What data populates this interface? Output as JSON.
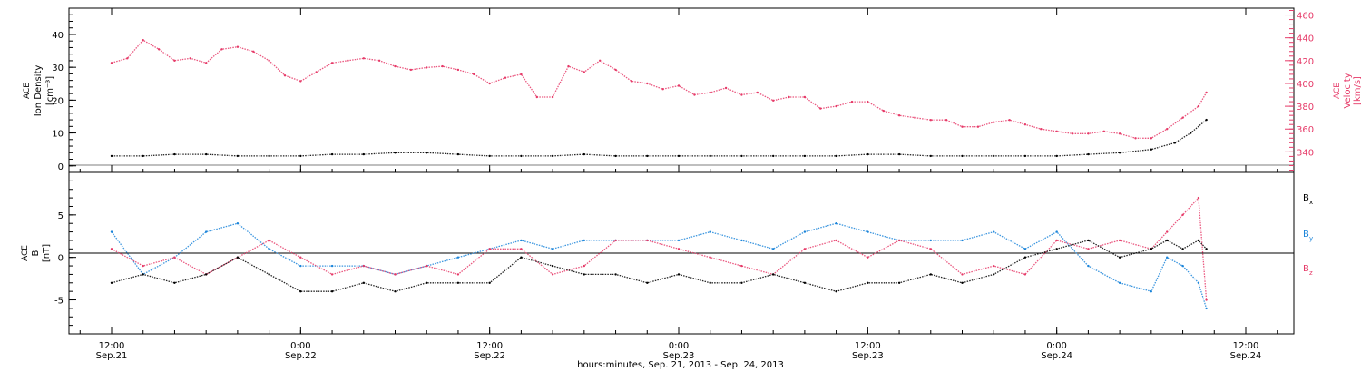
{
  "colors": {
    "primary": "#000000",
    "pink": "#e63a68",
    "blue": "#1a84d9"
  },
  "x_axis": {
    "ticks": [
      {
        "time": "12:00",
        "date": "Sep.21"
      },
      {
        "time": "0:00",
        "date": "Sep.22"
      },
      {
        "time": "12:00",
        "date": "Sep.22"
      },
      {
        "time": "0:00",
        "date": "Sep.23"
      },
      {
        "time": "12:00",
        "date": "Sep.23"
      },
      {
        "time": "0:00",
        "date": "Sep.24"
      },
      {
        "time": "12:00",
        "date": "Sep.24"
      }
    ],
    "label": "hours:minutes, Sep. 21, 2013 - Sep. 24, 2013"
  },
  "chart_data": [
    {
      "type": "scatter",
      "ylabel_left": [
        "ACE",
        "Ion Density",
        "[cm⁻³]"
      ],
      "ylabel_right": [
        "ACE",
        "Velocity",
        "[km/s]"
      ],
      "left_ticks": [
        "40",
        "30",
        "20",
        "10",
        "0"
      ],
      "right_ticks": [
        "460",
        "440",
        "420",
        "400",
        "380",
        "360",
        "340"
      ],
      "ylim_left": [
        -2,
        48
      ],
      "ylim_right": [
        322,
        466
      ],
      "series": [
        {
          "name": "Ion Density",
          "color": "#000000",
          "x": [
            0,
            2,
            4,
            6,
            8,
            10,
            12,
            14,
            16,
            18,
            20,
            22,
            24,
            26,
            28,
            30,
            32,
            34,
            36,
            38,
            40,
            42,
            44,
            46,
            48,
            50,
            52,
            54,
            56,
            58,
            60,
            62,
            64,
            66,
            67.5,
            68.5,
            69.5
          ],
          "y": [
            3,
            3,
            3.5,
            3.5,
            3,
            3,
            3,
            3.5,
            3.5,
            4,
            4,
            3.5,
            3,
            3,
            3,
            3.5,
            3,
            3,
            3,
            3,
            3,
            3,
            3,
            3,
            3.5,
            3.5,
            3,
            3,
            3,
            3,
            3,
            3.5,
            4,
            5,
            7,
            10,
            14
          ]
        },
        {
          "name": "Velocity",
          "color": "#e63a68",
          "x": [
            0,
            1,
            2,
            3,
            4,
            5,
            6,
            7,
            8,
            9,
            10,
            11,
            12,
            13,
            14,
            15,
            16,
            17,
            18,
            19,
            20,
            21,
            22,
            23,
            24,
            25,
            26,
            27,
            28,
            29,
            30,
            31,
            32,
            33,
            34,
            35,
            36,
            37,
            38,
            39,
            40,
            41,
            42,
            43,
            44,
            45,
            46,
            47,
            48,
            49,
            50,
            51,
            52,
            53,
            54,
            55,
            56,
            57,
            58,
            59,
            60,
            61,
            62,
            63,
            64,
            65,
            66,
            67,
            68,
            69,
            69.5
          ],
          "y": [
            418,
            422,
            438,
            430,
            420,
            422,
            418,
            430,
            432,
            428,
            420,
            407,
            402,
            410,
            418,
            420,
            422,
            420,
            415,
            412,
            414,
            415,
            412,
            408,
            400,
            405,
            408,
            388,
            388,
            415,
            410,
            420,
            412,
            402,
            400,
            395,
            398,
            390,
            392,
            396,
            390,
            392,
            385,
            388,
            388,
            378,
            380,
            384,
            384,
            376,
            372,
            370,
            368,
            368,
            362,
            362,
            366,
            368,
            364,
            360,
            358,
            356,
            356,
            358,
            356,
            352,
            352,
            360,
            370,
            380,
            392
          ]
        }
      ]
    },
    {
      "type": "scatter",
      "ylabel_left": [
        "ACE",
        "B",
        "[nT]"
      ],
      "left_ticks": [
        "5",
        "0",
        "-5"
      ],
      "ylim_left": [
        -9,
        10
      ],
      "legend": [
        {
          "label": "B",
          "sub": "x",
          "color": "#000000"
        },
        {
          "label": "B",
          "sub": "y",
          "color": "#1a84d9"
        },
        {
          "label": "B",
          "sub": "z",
          "color": "#e63a68"
        }
      ],
      "series": [
        {
          "name": "Bx",
          "color": "#000000",
          "x": [
            0,
            2,
            4,
            6,
            8,
            10,
            12,
            14,
            16,
            18,
            20,
            22,
            24,
            26,
            28,
            30,
            32,
            34,
            36,
            38,
            40,
            42,
            44,
            46,
            48,
            50,
            52,
            54,
            56,
            58,
            60,
            62,
            64,
            66,
            67,
            68,
            69,
            69.5
          ],
          "y": [
            -3,
            -2,
            -3,
            -2,
            0,
            -2,
            -4,
            -4,
            -3,
            -4,
            -3,
            -3,
            -3,
            0,
            -1,
            -2,
            -2,
            -3,
            -2,
            -3,
            -3,
            -2,
            -3,
            -4,
            -3,
            -3,
            -2,
            -3,
            -2,
            0,
            1,
            2,
            0,
            1,
            2,
            1,
            2,
            1
          ]
        },
        {
          "name": "By",
          "color": "#1a84d9",
          "x": [
            0,
            2,
            4,
            6,
            8,
            10,
            12,
            14,
            16,
            18,
            20,
            22,
            24,
            26,
            28,
            30,
            32,
            34,
            36,
            38,
            40,
            42,
            44,
            46,
            48,
            50,
            52,
            54,
            56,
            58,
            60,
            62,
            64,
            66,
            67,
            68,
            69,
            69.5
          ],
          "y": [
            3,
            -2,
            0,
            3,
            4,
            1,
            -1,
            -1,
            -1,
            -2,
            -1,
            0,
            1,
            2,
            1,
            2,
            2,
            2,
            2,
            3,
            2,
            1,
            3,
            4,
            3,
            2,
            2,
            2,
            3,
            1,
            3,
            -1,
            -3,
            -4,
            0,
            -1,
            -3,
            -6
          ]
        },
        {
          "name": "Bz",
          "color": "#e63a68",
          "x": [
            0,
            2,
            4,
            6,
            8,
            10,
            12,
            14,
            16,
            18,
            20,
            22,
            24,
            26,
            28,
            30,
            32,
            34,
            36,
            38,
            40,
            42,
            44,
            46,
            48,
            50,
            52,
            54,
            56,
            58,
            60,
            62,
            64,
            66,
            67,
            68,
            69,
            69.5
          ],
          "y": [
            1,
            -1,
            0,
            -2,
            0,
            2,
            0,
            -2,
            -1,
            -2,
            -1,
            -2,
            1,
            1,
            -2,
            -1,
            2,
            2,
            1,
            0,
            -1,
            -2,
            1,
            2,
            0,
            2,
            1,
            -2,
            -1,
            -2,
            2,
            1,
            2,
            1,
            3,
            5,
            7,
            -5
          ]
        }
      ]
    }
  ]
}
